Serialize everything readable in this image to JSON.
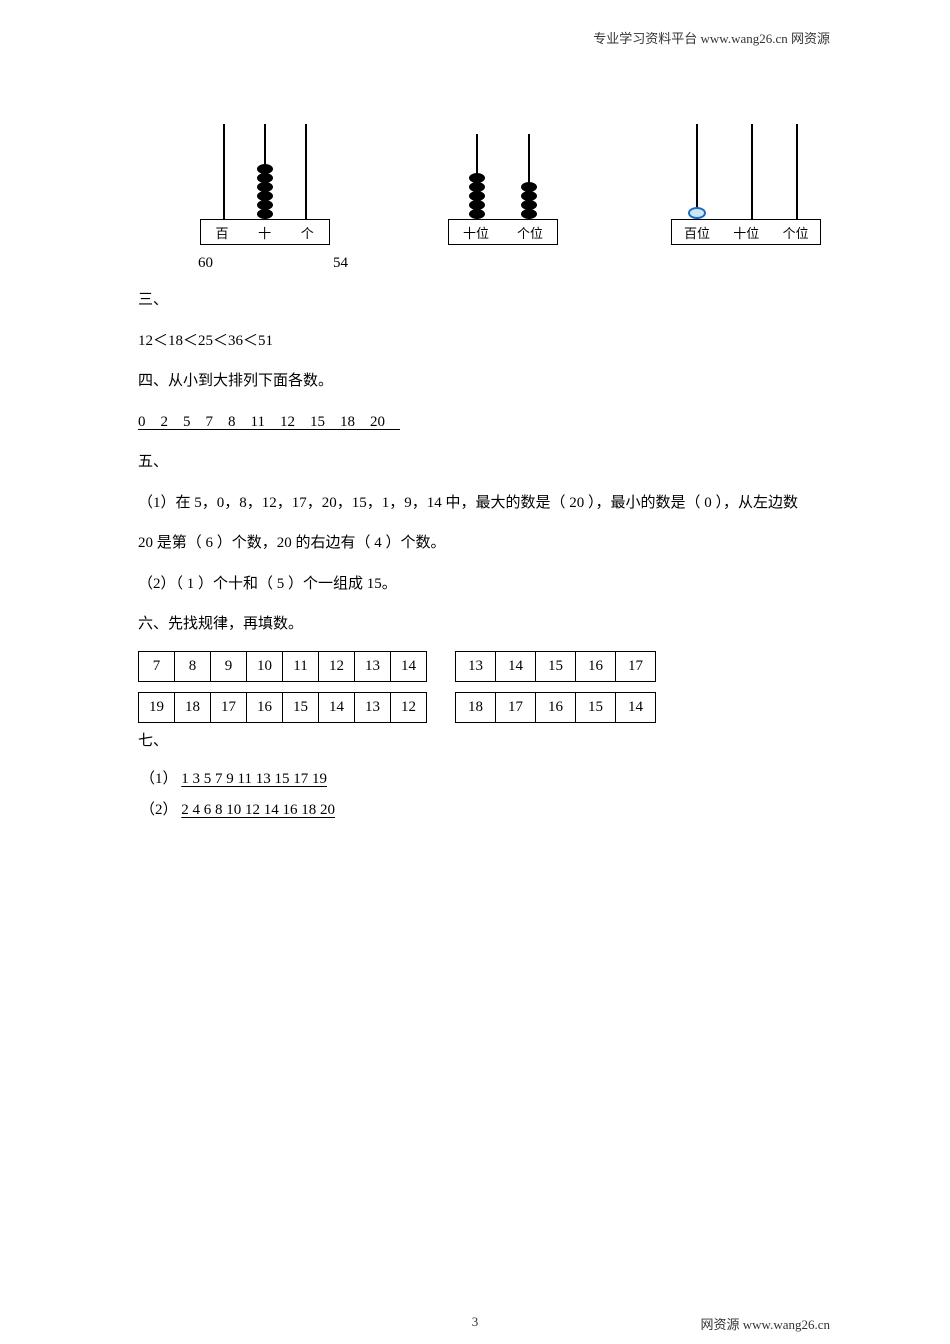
{
  "header": {
    "text": "专业学习资料平台 www.wang26.cn 网资源"
  },
  "abacus_values": {
    "v1": "60",
    "v2": "54"
  },
  "abacus_labels": {
    "a1": [
      "百",
      "十",
      "个"
    ],
    "a2": [
      "十位",
      "个位"
    ],
    "a3": [
      "百位",
      "十位",
      "个位"
    ]
  },
  "section3": {
    "label": "三、",
    "content": "12＜18＜25＜36＜51"
  },
  "section4": {
    "label": "四、从小到大排列下面各数。",
    "content": "0　2　5　7　8　11　12　15　18　20　"
  },
  "section5": {
    "label": "五、",
    "l1_a": "（1）在 5，0，8，12，17，20，15，1，9，14 中，最大的数是（ 20 ），最小的数是（ 0 ），从左边数",
    "l1_b": "20 是第（ 6 ）个数，20 的右边有（ 4 ）个数。",
    "l2": "（2）（ 1 ）个十和（ 5 ）个一组成 15。"
  },
  "section6": {
    "label": "六、先找规律，再填数。",
    "t1r1": [
      "7",
      "8",
      "9",
      "10",
      "11",
      "12",
      "13",
      "14"
    ],
    "t1r2": [
      "19",
      "18",
      "17",
      "16",
      "15",
      "14",
      "13",
      "12"
    ],
    "t2r1": [
      "13",
      "14",
      "15",
      "16",
      "17"
    ],
    "t2r2": [
      "18",
      "17",
      "16",
      "15",
      "14"
    ]
  },
  "section7": {
    "label": "七、",
    "a1p": "（1）",
    "a1": "  1  3  5  7  9  11  13  15  17  19   ",
    "a2p": "（2）",
    "a2": "  2  4  6  8  10  12  14  16  18  20   "
  },
  "footer": {
    "page": "3",
    "source": "网资源 www.wang26.cn"
  }
}
